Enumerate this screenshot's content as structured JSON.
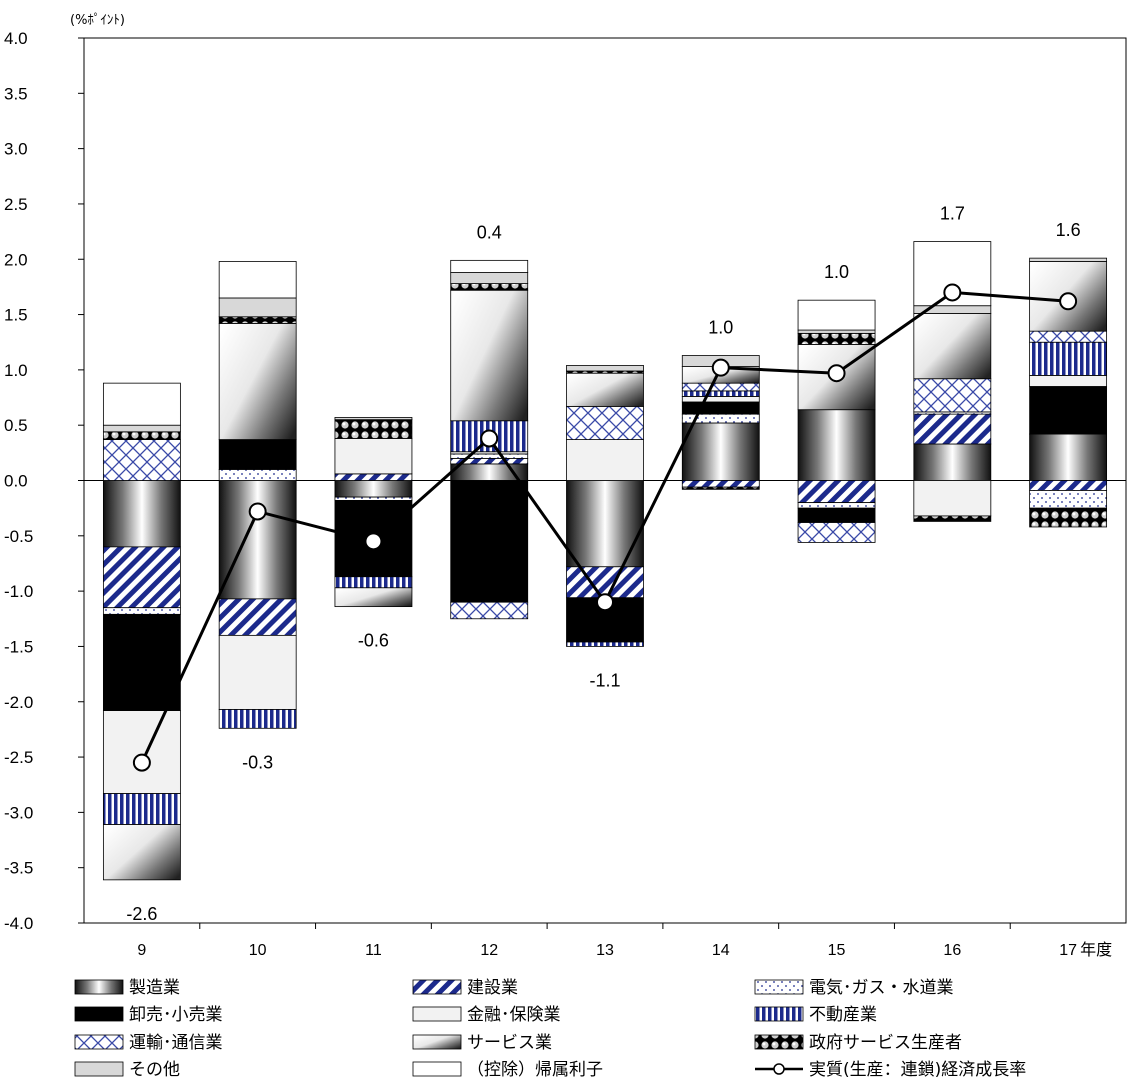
{
  "chart_data": {
    "type": "bar",
    "stacked": true,
    "title": "",
    "unit_label": "(%ﾎﾟｲﾝﾄ)",
    "xlabel": "年度",
    "ylabel": "",
    "ylim": [
      -4.0,
      4.0
    ],
    "yticks": [
      "4.0",
      "3.5",
      "3.0",
      "2.5",
      "2.0",
      "1.5",
      "1.0",
      "0.5",
      "0.0",
      "-0.5",
      "-1.0",
      "-1.5",
      "-2.0",
      "-2.5",
      "-3.0",
      "-3.5",
      "-4.0"
    ],
    "grid": false,
    "legend_position": "bottom",
    "categories": [
      "9",
      "10",
      "11",
      "12",
      "13",
      "14",
      "15",
      "16",
      "17"
    ],
    "series": [
      {
        "name": "製造業",
        "pattern": "metal-h",
        "values": [
          -0.6,
          -1.07,
          -0.15,
          0.15,
          -0.78,
          0.52,
          0.64,
          0.33,
          0.42
        ]
      },
      {
        "name": "建設業",
        "pattern": "diag",
        "values": [
          -0.55,
          -0.33,
          0.06,
          0.05,
          -0.28,
          -0.06,
          -0.2,
          0.27,
          -0.09
        ]
      },
      {
        "name": "電気・ガス・水道業",
        "pattern": "dots",
        "values": [
          -0.06,
          0.1,
          -0.03,
          0.04,
          0.0,
          0.08,
          -0.05,
          0.02,
          -0.16
        ]
      },
      {
        "name": "卸売・小売業",
        "pattern": "black",
        "values": [
          -0.87,
          0.27,
          -0.69,
          -1.1,
          -0.4,
          0.11,
          -0.13,
          0.0,
          0.43
        ]
      },
      {
        "name": "金融・保険業",
        "pattern": "lightgray",
        "values": [
          -0.75,
          -0.67,
          0.32,
          0.02,
          0.37,
          0.05,
          0.0,
          -0.32,
          0.1
        ]
      },
      {
        "name": "不動産業",
        "pattern": "vstripe",
        "values": [
          -0.28,
          -0.17,
          -0.1,
          0.28,
          -0.04,
          0.05,
          0.0,
          0.0,
          0.3
        ]
      },
      {
        "name": "運輸・通信業",
        "pattern": "cross",
        "values": [
          0.37,
          0.0,
          0.0,
          -0.15,
          0.3,
          0.07,
          -0.18,
          0.3,
          0.1
        ]
      },
      {
        "name": "サービス業",
        "pattern": "metal-d",
        "values": [
          -0.5,
          1.05,
          -0.17,
          1.18,
          0.3,
          0.15,
          0.59,
          0.59,
          0.63
        ]
      },
      {
        "name": "政府サービス生産者",
        "pattern": "balls",
        "values": [
          0.07,
          0.06,
          0.17,
          0.06,
          0.02,
          -0.02,
          0.1,
          -0.05,
          -0.17
        ]
      },
      {
        "name": "その他",
        "pattern": "lightgray2",
        "values": [
          0.06,
          0.17,
          0.02,
          0.1,
          0.05,
          0.1,
          0.03,
          0.07,
          0.03
        ]
      },
      {
        "name": "（控除）帰属利子",
        "pattern": "white",
        "values": [
          0.38,
          0.33,
          0.0,
          0.11,
          0.0,
          0.0,
          0.27,
          0.58,
          0.0
        ]
      }
    ],
    "line_series": {
      "name": "実質(生産：連鎖)経済成長率",
      "values": [
        -2.55,
        -0.28,
        -0.55,
        0.38,
        -1.1,
        1.02,
        0.97,
        1.7,
        1.62
      ],
      "labels": [
        "-2.6",
        "-0.3",
        "-0.6",
        "0.4",
        "-1.1",
        "1.0",
        "1.0",
        "1.7",
        "1.6"
      ]
    },
    "legend": [
      {
        "name": "製造業",
        "pattern": "metal-h"
      },
      {
        "name": "建設業",
        "pattern": "diag"
      },
      {
        "name": "電気･ガス・水道業",
        "pattern": "dots"
      },
      {
        "name": "卸売･小売業",
        "pattern": "black"
      },
      {
        "name": "金融･保険業",
        "pattern": "lightgray"
      },
      {
        "name": "不動産業",
        "pattern": "vstripe"
      },
      {
        "name": "運輸･通信業",
        "pattern": "cross"
      },
      {
        "name": "サービス業",
        "pattern": "metal-d"
      },
      {
        "name": "政府サービス生産者",
        "pattern": "balls"
      },
      {
        "name": "その他",
        "pattern": "lightgray2"
      },
      {
        "name": "（控除）帰属利子",
        "pattern": "white"
      },
      {
        "name": "実質(生産：連鎖)経済成長率",
        "pattern": "line"
      }
    ]
  }
}
